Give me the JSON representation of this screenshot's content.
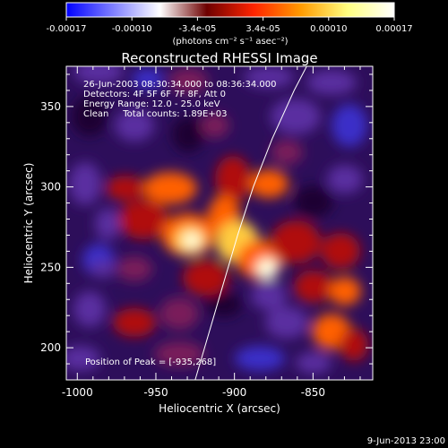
{
  "colorbar": {
    "stops": [
      "#0000ff",
      "#7f7fff",
      "#ffffff",
      "#6d0000",
      "#ff2400",
      "#ff9a00",
      "#ffff80",
      "#ffffff"
    ],
    "tick_labels": [
      "-0.00017",
      "-0.00010",
      "-3.4e-05",
      "3.4e-05",
      "0.00010",
      "0.00017"
    ],
    "unit": "(photons cm⁻² s⁻¹ asec⁻²)"
  },
  "chart_data": {
    "type": "heatmap",
    "title": "Reconstructed RHESSI Image",
    "xlabel": "Heliocentric X (arcsec)",
    "ylabel": "Heliocentric Y (arcsec)",
    "xlim": [
      -1007,
      -812
    ],
    "ylim": [
      180,
      375
    ],
    "x_ticks": [
      -1000,
      -950,
      -900,
      -850
    ],
    "y_ticks": [
      200,
      250,
      300,
      350
    ],
    "grid": false,
    "peak": {
      "x": -935,
      "y": 268
    },
    "limb_curve": {
      "points": [
        [
          -925,
          180
        ],
        [
          -916,
          210
        ],
        [
          -907,
          240
        ],
        [
          -898,
          270
        ],
        [
          -888,
          300
        ],
        [
          -876,
          330
        ],
        [
          -862,
          360
        ],
        [
          -854,
          375
        ]
      ]
    },
    "annotations": [
      "26-Jun-2003 08:30:34.000 to 08:36:34.000",
      "Detectors: 4F 5F 6F 7F 8F, Att 0",
      "Energy Range: 12.0 - 25.0 keV",
      "Clean     Total counts: 1.89E+03"
    ],
    "peak_label": "Position of Peak = [-935,268]"
  },
  "footer": {
    "date": "9-Jun-2013 23:00"
  }
}
